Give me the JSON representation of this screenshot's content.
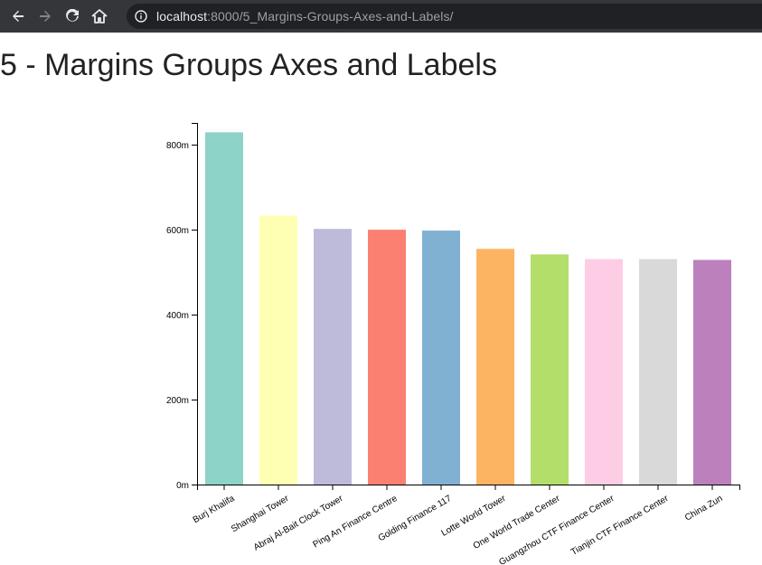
{
  "browser": {
    "url_host": "localhost",
    "url_path": ":8000/5_Margins-Groups-Axes-and-Labels/",
    "icons": [
      "back-arrow-icon",
      "forward-arrow-icon",
      "reload-icon",
      "home-icon",
      "info-icon"
    ]
  },
  "page": {
    "title": "5 - Margins Groups Axes and Labels"
  },
  "chart_data": {
    "type": "bar",
    "categories": [
      "Burj Khalifa",
      "Shanghai Tower",
      "Abraj Al-Bait Clock Tower",
      "Ping An Finance Centre",
      "Golding Finance 117",
      "Lotte World Tower",
      "One World Trade Center",
      "Guangzhou CTF Finance Center",
      "Tianjin CTF Finance Center",
      "China Zun"
    ],
    "values": [
      828,
      632,
      601,
      599,
      597,
      554,
      541,
      530,
      530,
      528
    ],
    "colors": [
      "#8dd3c7",
      "#ffffb3",
      "#bebada",
      "#fb8072",
      "#80b1d3",
      "#fdb462",
      "#b3de69",
      "#fccde5",
      "#d9d9d9",
      "#bc80bd"
    ],
    "y_ticks": [
      "0m",
      "200m",
      "400m",
      "600m",
      "800m"
    ],
    "y_tick_values": [
      0,
      200,
      400,
      600,
      800
    ],
    "ylim": [
      0,
      850
    ],
    "xlabel": "",
    "ylabel": "",
    "grid": false
  }
}
